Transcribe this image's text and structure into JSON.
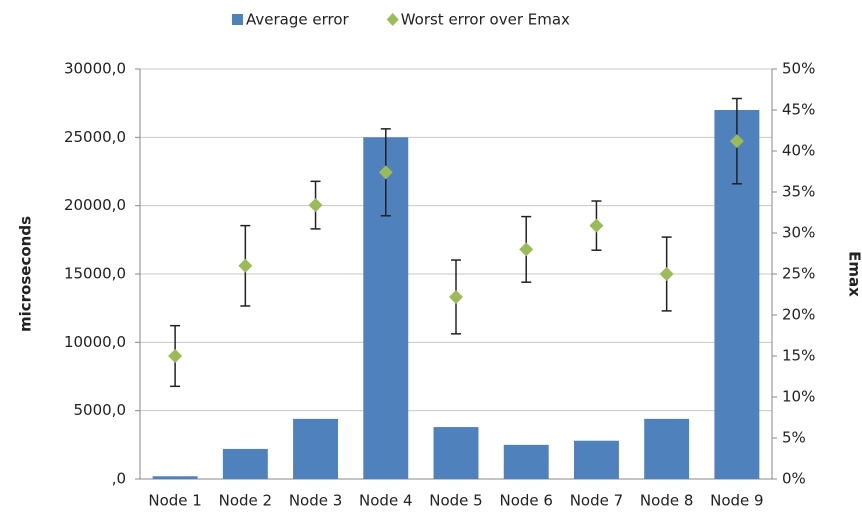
{
  "chart_data": {
    "type": "bar",
    "categories": [
      "Node 1",
      "Node 2",
      "Node 3",
      "Node 4",
      "Node 5",
      "Node 6",
      "Node 7",
      "Node 8",
      "Node 9"
    ],
    "series": [
      {
        "name": "Average error",
        "color": "#4f81bd",
        "type": "bar",
        "values": [
          200,
          2200,
          4400,
          25000,
          3800,
          2500,
          2800,
          4400,
          27000
        ]
      },
      {
        "name": "Worst error over Emax",
        "color": "#9bbb59",
        "type": "scatter",
        "axis": "y2",
        "values": [
          15,
          26,
          33.4,
          37.4,
          22.2,
          28,
          30.9,
          25,
          41.2
        ],
        "errors": [
          3.7,
          4.9,
          2.9,
          5.3,
          4.5,
          4,
          3,
          4.5,
          5.2
        ]
      }
    ],
    "y_label": "microseconds",
    "y2_label": "Emax",
    "ylim": [
      0,
      30000
    ],
    "yticks": [
      {
        "value": 0,
        "label": ",0"
      },
      {
        "value": 5000,
        "label": "5000,0"
      },
      {
        "value": 10000,
        "label": "10000,0"
      },
      {
        "value": 15000,
        "label": "15000,0"
      },
      {
        "value": 20000,
        "label": "20000,0"
      },
      {
        "value": 25000,
        "label": "25000,0"
      },
      {
        "value": 30000,
        "label": "30000,0"
      }
    ],
    "y2lim": [
      0,
      50
    ],
    "y2ticks": [
      {
        "value": 0,
        "label": "0%"
      },
      {
        "value": 5,
        "label": "5%"
      },
      {
        "value": 10,
        "label": "10%"
      },
      {
        "value": 15,
        "label": "15%"
      },
      {
        "value": 20,
        "label": "20%"
      },
      {
        "value": 25,
        "label": "25%"
      },
      {
        "value": 30,
        "label": "30%"
      },
      {
        "value": 35,
        "label": "35%"
      },
      {
        "value": 40,
        "label": "40%"
      },
      {
        "value": 45,
        "label": "45%"
      },
      {
        "value": 50,
        "label": "50%"
      }
    ],
    "grid": true,
    "legend": "top"
  }
}
